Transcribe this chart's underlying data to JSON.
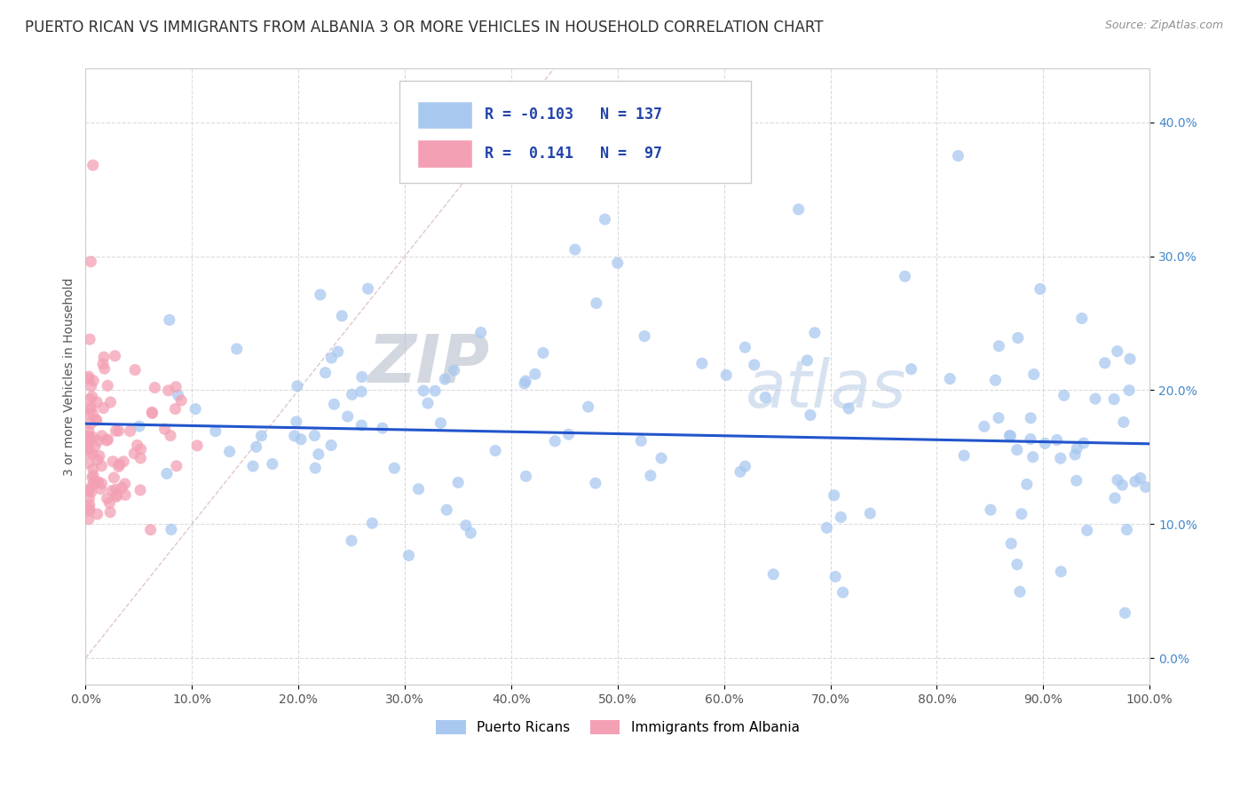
{
  "title": "PUERTO RICAN VS IMMIGRANTS FROM ALBANIA 3 OR MORE VEHICLES IN HOUSEHOLD CORRELATION CHART",
  "source": "Source: ZipAtlas.com",
  "ylabel": "3 or more Vehicles in Household",
  "xlim": [
    0.0,
    1.0
  ],
  "ylim": [
    -0.02,
    0.44
  ],
  "xticks": [
    0.0,
    0.1,
    0.2,
    0.3,
    0.4,
    0.5,
    0.6,
    0.7,
    0.8,
    0.9,
    1.0
  ],
  "xticklabels": [
    "0.0%",
    "10.0%",
    "20.0%",
    "30.0%",
    "40.0%",
    "50.0%",
    "60.0%",
    "70.0%",
    "80.0%",
    "90.0%",
    "100.0%"
  ],
  "yticks": [
    0.0,
    0.1,
    0.2,
    0.3,
    0.4
  ],
  "yticklabels": [
    "0.0%",
    "10.0%",
    "20.0%",
    "30.0%",
    "40.0%"
  ],
  "blue_R": "-0.103",
  "blue_N": "137",
  "pink_R": "0.141",
  "pink_N": "97",
  "blue_color": "#a8c8f0",
  "pink_color": "#f4a0b4",
  "blue_line_color": "#2255cc",
  "diagonal_color": "#d8b8c0",
  "grid_color": "#cccccc",
  "title_color": "#303030",
  "source_color": "#909090",
  "watermark_zip": "ZIP",
  "watermark_atlas": "atlas",
  "legend_label_blue": "Puerto Ricans",
  "legend_label_pink": "Immigrants from Albania",
  "figsize": [
    14.06,
    8.92
  ],
  "dpi": 100
}
